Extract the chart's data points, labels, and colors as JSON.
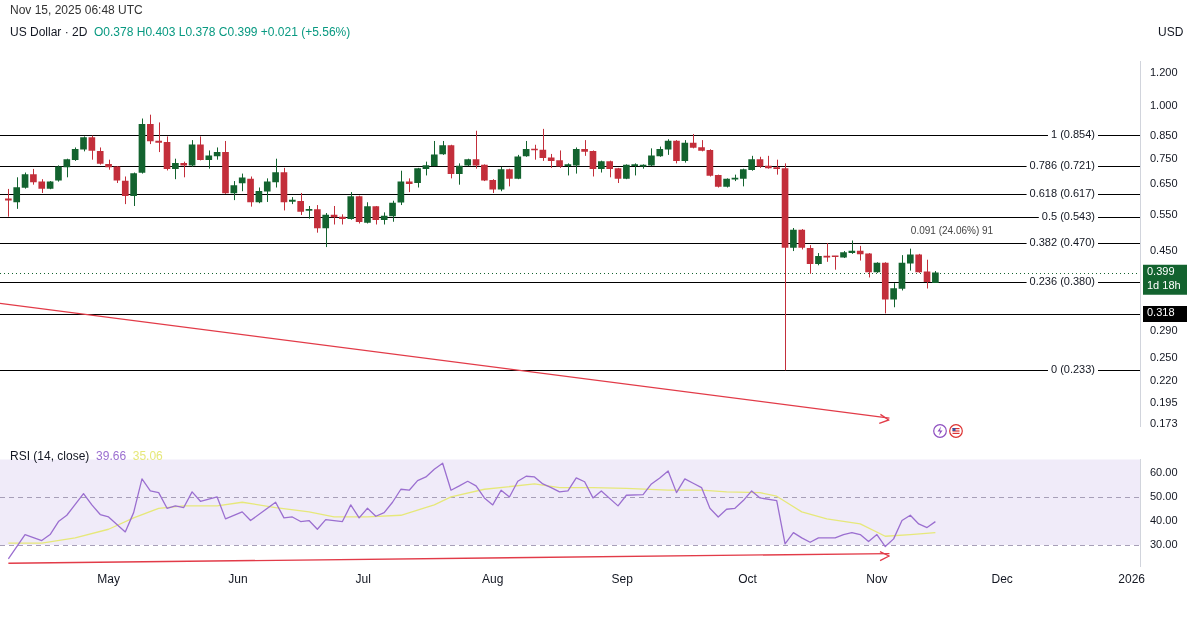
{
  "chart_data": [
    {
      "type": "candlestick",
      "title": "US Dollar · 2D",
      "subtitle": "O0.378 H0.403 L0.378 C0.399 +0.021 (+5.56%)",
      "ylabel": "USD",
      "log": true,
      "tick_labels": "y",
      "annotations": [
        "Nov 15, 2025 06:48 UTC",
        "0.091 (24.06%) 91"
      ],
      "xlim": [
        "2025-04-05",
        "2026-01-03"
      ],
      "ylim": [
        0.171,
        1.28
      ],
      "yticks": [
        0.173,
        0.195,
        {
          "value": 0.22,
          "label": "0.220"
        },
        {
          "value": 0.25,
          "label": "0.250"
        },
        {
          "value": 0.29,
          "label": "0.290"
        },
        {
          "value": 0.45,
          "label": "0.450"
        },
        {
          "value": 0.55,
          "label": "0.550"
        },
        {
          "value": 0.65,
          "label": "0.650"
        },
        {
          "value": 0.75,
          "label": "0.750"
        },
        {
          "value": 0.85,
          "label": "0.850"
        },
        {
          "value": 1,
          "label": "1.000"
        },
        {
          "value": 1.2,
          "label": "1.200"
        }
      ],
      "x": [
        "2025-04-07",
        "2025-04-09",
        "2025-04-11",
        "2025-04-13",
        "2025-04-15",
        "2025-04-17",
        "2025-04-19",
        "2025-04-21",
        "2025-04-23",
        "2025-04-25",
        "2025-04-27",
        "2025-04-29",
        "2025-05-01",
        "2025-05-03",
        "2025-05-05",
        "2025-05-07",
        "2025-05-09",
        "2025-05-11",
        "2025-05-13",
        "2025-05-15",
        "2025-05-17",
        "2025-05-19",
        "2025-05-21",
        "2025-05-23",
        "2025-05-25",
        "2025-05-27",
        "2025-05-29",
        "2025-05-31",
        "2025-06-02",
        "2025-06-04",
        "2025-06-06",
        "2025-06-08",
        "2025-06-10",
        "2025-06-12",
        "2025-06-14",
        "2025-06-16",
        "2025-06-18",
        "2025-06-20",
        "2025-06-22",
        "2025-06-24",
        "2025-06-26",
        "2025-06-28",
        "2025-06-30",
        "2025-07-02",
        "2025-07-04",
        "2025-07-06",
        "2025-07-08",
        "2025-07-10",
        "2025-07-12",
        "2025-07-14",
        "2025-07-16",
        "2025-07-18",
        "2025-07-20",
        "2025-07-22",
        "2025-07-24",
        "2025-07-26",
        "2025-07-28",
        "2025-07-30",
        "2025-08-01",
        "2025-08-03",
        "2025-08-05",
        "2025-08-07",
        "2025-08-09",
        "2025-08-11",
        "2025-08-13",
        "2025-08-15",
        "2025-08-17",
        "2025-08-19",
        "2025-08-21",
        "2025-08-23",
        "2025-08-25",
        "2025-08-27",
        "2025-08-29",
        "2025-08-31",
        "2025-09-02",
        "2025-09-04",
        "2025-09-06",
        "2025-09-08",
        "2025-09-10",
        "2025-09-12",
        "2025-09-14",
        "2025-09-16",
        "2025-09-18",
        "2025-09-20",
        "2025-09-22",
        "2025-09-24",
        "2025-09-26",
        "2025-09-28",
        "2025-09-30",
        "2025-10-02",
        "2025-10-04",
        "2025-10-06",
        "2025-10-08",
        "2025-10-10",
        "2025-10-12",
        "2025-10-14",
        "2025-10-16",
        "2025-10-18",
        "2025-10-20",
        "2025-10-22",
        "2025-10-24",
        "2025-10-26",
        "2025-10-28",
        "2025-10-30",
        "2025-11-01",
        "2025-11-03",
        "2025-11-05",
        "2025-11-07",
        "2025-11-09",
        "2025-11-11",
        "2025-11-13",
        "2025-11-15"
      ],
      "ohlc": [
        [
          0.6,
          0.634,
          0.544,
          0.596
        ],
        [
          0.59,
          0.676,
          0.568,
          0.639
        ],
        [
          0.639,
          0.694,
          0.635,
          0.686
        ],
        [
          0.686,
          0.708,
          0.649,
          0.659
        ],
        [
          0.659,
          0.669,
          0.62,
          0.636
        ],
        [
          0.636,
          0.662,
          0.633,
          0.659
        ],
        [
          0.665,
          0.722,
          0.66,
          0.716
        ],
        [
          0.716,
          0.749,
          0.676,
          0.745
        ],
        [
          0.745,
          0.797,
          0.74,
          0.789
        ],
        [
          0.789,
          0.847,
          0.78,
          0.842
        ],
        [
          0.842,
          0.851,
          0.745,
          0.784
        ],
        [
          0.78,
          0.797,
          0.725,
          0.73
        ],
        [
          0.726,
          0.745,
          0.705,
          0.716
        ],
        [
          0.716,
          0.719,
          0.655,
          0.665
        ],
        [
          0.662,
          0.679,
          0.583,
          0.611
        ],
        [
          0.611,
          0.694,
          0.577,
          0.69
        ],
        [
          0.694,
          0.935,
          0.69,
          0.906
        ],
        [
          0.906,
          0.955,
          0.812,
          0.826
        ],
        [
          0.826,
          0.915,
          0.777,
          0.82
        ],
        [
          0.82,
          0.847,
          0.702,
          0.709
        ],
        [
          0.709,
          0.749,
          0.669,
          0.73
        ],
        [
          0.73,
          0.737,
          0.676,
          0.723
        ],
        [
          0.723,
          0.83,
          0.716,
          0.809
        ],
        [
          0.809,
          0.847,
          0.742,
          0.745
        ],
        [
          0.745,
          0.784,
          0.709,
          0.761
        ],
        [
          0.761,
          0.797,
          0.745,
          0.776
        ],
        [
          0.776,
          0.826,
          0.617,
          0.62
        ],
        [
          0.62,
          0.662,
          0.596,
          0.646
        ],
        [
          0.655,
          0.69,
          0.626,
          0.674
        ],
        [
          0.669,
          0.679,
          0.575,
          0.59
        ],
        [
          0.59,
          0.639,
          0.586,
          0.626
        ],
        [
          0.626,
          0.672,
          0.59,
          0.659
        ],
        [
          0.659,
          0.749,
          0.639,
          0.694
        ],
        [
          0.694,
          0.712,
          0.563,
          0.59
        ],
        [
          0.592,
          0.606,
          0.583,
          0.596
        ],
        [
          0.592,
          0.62,
          0.549,
          0.56
        ],
        [
          0.563,
          0.577,
          0.538,
          0.566
        ],
        [
          0.566,
          0.58,
          0.498,
          0.511
        ],
        [
          0.511,
          0.555,
          0.46,
          0.549
        ],
        [
          0.549,
          0.577,
          0.521,
          0.543
        ],
        [
          0.543,
          0.551,
          0.521,
          0.538
        ],
        [
          0.538,
          0.623,
          0.535,
          0.608
        ],
        [
          0.608,
          0.611,
          0.524,
          0.529
        ],
        [
          0.527,
          0.589,
          0.524,
          0.575
        ],
        [
          0.575,
          0.577,
          0.521,
          0.535
        ],
        [
          0.535,
          0.557,
          0.521,
          0.546
        ],
        [
          0.546,
          0.594,
          0.529,
          0.586
        ],
        [
          0.589,
          0.701,
          0.58,
          0.659
        ],
        [
          0.659,
          0.672,
          0.623,
          0.653
        ],
        [
          0.656,
          0.712,
          0.639,
          0.709
        ],
        [
          0.709,
          0.737,
          0.683,
          0.721
        ],
        [
          0.721,
          0.826,
          0.719,
          0.765
        ],
        [
          0.769,
          0.826,
          0.765,
          0.805
        ],
        [
          0.805,
          0.809,
          0.672,
          0.69
        ],
        [
          0.69,
          0.73,
          0.649,
          0.719
        ],
        [
          0.723,
          0.749,
          0.719,
          0.745
        ],
        [
          0.745,
          0.874,
          0.709,
          0.723
        ],
        [
          0.723,
          0.726,
          0.662,
          0.665
        ],
        [
          0.665,
          0.669,
          0.62,
          0.633
        ],
        [
          0.633,
          0.716,
          0.626,
          0.705
        ],
        [
          0.705,
          0.709,
          0.643,
          0.672
        ],
        [
          0.672,
          0.765,
          0.669,
          0.757
        ],
        [
          0.761,
          0.826,
          0.757,
          0.789
        ],
        [
          0.789,
          0.809,
          0.745,
          0.786
        ],
        [
          0.786,
          0.883,
          0.74,
          0.753
        ],
        [
          0.753,
          0.769,
          0.712,
          0.741
        ],
        [
          0.741,
          0.784,
          0.712,
          0.719
        ],
        [
          0.721,
          0.73,
          0.683,
          0.723
        ],
        [
          0.723,
          0.797,
          0.69,
          0.789
        ],
        [
          0.789,
          0.83,
          0.761,
          0.78
        ],
        [
          0.78,
          0.784,
          0.679,
          0.709
        ],
        [
          0.709,
          0.741,
          0.694,
          0.737
        ],
        [
          0.737,
          0.741,
          0.676,
          0.709
        ],
        [
          0.709,
          0.712,
          0.655,
          0.672
        ],
        [
          0.672,
          0.726,
          0.669,
          0.723
        ],
        [
          0.721,
          0.73,
          0.683,
          0.723
        ],
        [
          0.719,
          0.726,
          0.709,
          0.723
        ],
        [
          0.723,
          0.793,
          0.719,
          0.761
        ],
        [
          0.761,
          0.801,
          0.757,
          0.789
        ],
        [
          0.789,
          0.834,
          0.765,
          0.826
        ],
        [
          0.826,
          0.83,
          0.73,
          0.741
        ],
        [
          0.741,
          0.83,
          0.733,
          0.817
        ],
        [
          0.817,
          0.858,
          0.793,
          0.797
        ],
        [
          0.797,
          0.83,
          0.78,
          0.784
        ],
        [
          0.784,
          0.789,
          0.679,
          0.683
        ],
        [
          0.683,
          0.686,
          0.639,
          0.643
        ],
        [
          0.643,
          0.672,
          0.639,
          0.669
        ],
        [
          0.669,
          0.686,
          0.662,
          0.672
        ],
        [
          0.672,
          0.709,
          0.643,
          0.705
        ],
        [
          0.705,
          0.761,
          0.701,
          0.745
        ],
        [
          0.745,
          0.757,
          0.712,
          0.719
        ],
        [
          0.719,
          0.761,
          0.709,
          0.712
        ],
        [
          0.712,
          0.745,
          0.686,
          0.709
        ],
        [
          0.709,
          0.73,
          0.233,
          0.459
        ],
        [
          0.459,
          0.511,
          0.45,
          0.505
        ],
        [
          0.505,
          0.508,
          0.454,
          0.459
        ],
        [
          0.457,
          0.465,
          0.397,
          0.42
        ],
        [
          0.42,
          0.445,
          0.416,
          0.437
        ],
        [
          0.437,
          0.47,
          0.424,
          0.435
        ],
        [
          0.437,
          0.438,
          0.406,
          0.436
        ],
        [
          0.435,
          0.45,
          0.433,
          0.446
        ],
        [
          0.446,
          0.477,
          0.443,
          0.45
        ],
        [
          0.45,
          0.463,
          0.427,
          0.443
        ],
        [
          0.443,
          0.445,
          0.389,
          0.401
        ],
        [
          0.401,
          0.423,
          0.399,
          0.421
        ],
        [
          0.421,
          0.423,
          0.319,
          0.345
        ],
        [
          0.345,
          0.377,
          0.33,
          0.366
        ],
        [
          0.366,
          0.44,
          0.362,
          0.421
        ],
        [
          0.421,
          0.456,
          0.404,
          0.441
        ],
        [
          0.441,
          0.443,
          0.399,
          0.401
        ],
        [
          0.401,
          0.429,
          0.366,
          0.38
        ],
        [
          0.378,
          0.403,
          0.378,
          0.399
        ]
      ],
      "series": [
        {
          "type": "line",
          "color": "#e23b48",
          "x": [
            "2025-04-05",
            "2025-11-04"
          ],
          "values": [
            0.337,
            0.179
          ]
        }
      ],
      "ref_lines": [
        {
          "axis": "y",
          "value": 0.854,
          "label": "1 (0.854)"
        },
        {
          "axis": "y",
          "value": 0.721,
          "label": "0.786 (0.721)"
        },
        {
          "axis": "y",
          "value": 0.617,
          "label": "0.618 (0.617)"
        },
        {
          "axis": "y",
          "value": 0.543,
          "label": "0.5 (0.543)"
        },
        {
          "axis": "y",
          "value": 0.47,
          "label": "0.382 (0.470)"
        },
        {
          "axis": "y",
          "value": 0.38,
          "label": "0.236 (0.380)"
        },
        {
          "axis": "y",
          "value": 0.318,
          "label": "0.318",
          "color": "#000000"
        },
        {
          "axis": "y",
          "value": 0.233,
          "label": "0 (0.233)"
        },
        {
          "axis": "y",
          "value": 0.399,
          "label": "0.399\n1d 18h",
          "color": "#13632f",
          "line_style": "dotted"
        }
      ]
    },
    {
      "type": "line",
      "title": "RSI (14, close)",
      "annotations": [
        "39.66",
        "35.06"
      ],
      "xlim": [
        "2025-04-05",
        "2026-01-03"
      ],
      "ylim": [
        21,
        65.4
      ],
      "xticks": [
        {
          "value": "2025-05-01",
          "label": "May"
        },
        {
          "value": "2025-06-01",
          "label": "Jun"
        },
        {
          "value": "2025-07-01",
          "label": "Jul"
        },
        {
          "value": "2025-08-01",
          "label": "Aug"
        },
        {
          "value": "2025-09-01",
          "label": "Sep"
        },
        {
          "value": "2025-10-01",
          "label": "Oct"
        },
        {
          "value": "2025-11-01",
          "label": "Nov"
        },
        {
          "value": "2025-12-01",
          "label": "Dec"
        },
        {
          "value": "2026-01-01",
          "label": "2026"
        }
      ],
      "yticks": [
        {
          "value": 30,
          "label": "30.00"
        },
        {
          "value": 40,
          "label": "40.00"
        },
        {
          "value": 50,
          "label": "50.00"
        },
        {
          "value": 60,
          "label": "60.00"
        }
      ],
      "bands": [
        {
          "axis": "y",
          "from": 30,
          "to": 65.4,
          "color": "#f0ebf9"
        }
      ],
      "ref_lines": [
        {
          "axis": "y",
          "value": 30,
          "color": "#a79fb8",
          "line_style": "dashed"
        },
        {
          "axis": "y",
          "value": 50,
          "color": "#a79fb8",
          "line_style": "dashed"
        }
      ],
      "series": [
        {
          "color": "#9b6fd0",
          "x": [
            "2025-04-07",
            "2025-04-11",
            "2025-04-15",
            "2025-04-17",
            "2025-04-19",
            "2025-04-21",
            "2025-04-25",
            "2025-04-27",
            "2025-04-29",
            "2025-05-01",
            "2025-05-05",
            "2025-05-07",
            "2025-05-09",
            "2025-05-11",
            "2025-05-13",
            "2025-05-15",
            "2025-05-17",
            "2025-05-19",
            "2025-05-21",
            "2025-05-23",
            "2025-05-27",
            "2025-05-29",
            "2025-06-02",
            "2025-06-04",
            "2025-06-10",
            "2025-06-12",
            "2025-06-14",
            "2025-06-16",
            "2025-06-18",
            "2025-06-20",
            "2025-06-22",
            "2025-06-26",
            "2025-06-28",
            "2025-06-30",
            "2025-07-02",
            "2025-07-04",
            "2025-07-06",
            "2025-07-08",
            "2025-07-10",
            "2025-07-12",
            "2025-07-14",
            "2025-07-16",
            "2025-07-18",
            "2025-07-20",
            "2025-07-22",
            "2025-07-24",
            "2025-07-26",
            "2025-07-28",
            "2025-07-30",
            "2025-08-01",
            "2025-08-03",
            "2025-08-05",
            "2025-08-07",
            "2025-08-09",
            "2025-08-11",
            "2025-08-13",
            "2025-08-15",
            "2025-08-17",
            "2025-08-19",
            "2025-08-21",
            "2025-08-23",
            "2025-08-25",
            "2025-08-27",
            "2025-08-31",
            "2025-09-02",
            "2025-09-06",
            "2025-09-08",
            "2025-09-10",
            "2025-09-12",
            "2025-09-14",
            "2025-09-16",
            "2025-09-18",
            "2025-09-20",
            "2025-09-22",
            "2025-09-24",
            "2025-09-26",
            "2025-09-28",
            "2025-09-30",
            "2025-10-02",
            "2025-10-04",
            "2025-10-08",
            "2025-10-10",
            "2025-10-12",
            "2025-10-14",
            "2025-10-16",
            "2025-10-18",
            "2025-10-22",
            "2025-10-24",
            "2025-10-26",
            "2025-10-28",
            "2025-10-30",
            "2025-11-01",
            "2025-11-03",
            "2025-11-05",
            "2025-11-07",
            "2025-11-09",
            "2025-11-11",
            "2025-11-13",
            "2025-11-15"
          ],
          "values": [
            24.2,
            34.3,
            31.8,
            34.3,
            39.7,
            42.3,
            51.3,
            46.6,
            42.6,
            41.6,
            35.4,
            43.4,
            57.4,
            52.4,
            51.7,
            45.2,
            46.2,
            45.5,
            52.0,
            48.1,
            49.9,
            40.8,
            43.7,
            40.1,
            47.7,
            41.2,
            41.6,
            39.7,
            40.1,
            36.5,
            40.5,
            39.7,
            46.6,
            41.2,
            45.2,
            41.9,
            43.4,
            47.7,
            53.1,
            52.7,
            56.7,
            58.2,
            61.4,
            63.9,
            52.7,
            54.5,
            56.4,
            54.5,
            49.5,
            46.6,
            52.7,
            49.9,
            56.4,
            58.5,
            58.2,
            55.3,
            53.8,
            52.0,
            52.4,
            57.8,
            56.2,
            49.5,
            52.4,
            46.2,
            50.6,
            50.9,
            55.3,
            57.8,
            60.7,
            51.7,
            57.4,
            55.6,
            53.8,
            45.2,
            41.6,
            44.8,
            45.2,
            48.4,
            52.4,
            49.5,
            48.4,
            30.4,
            35.1,
            32.9,
            31.1,
            32.9,
            32.9,
            34.3,
            35.1,
            34.3,
            31.4,
            34.3,
            29.3,
            32.5,
            40.1,
            42.3,
            38.7,
            37.2,
            39.66
          ]
        },
        {
          "color": "#e6e87a",
          "x": [
            "2025-04-07",
            "2025-04-15",
            "2025-04-23",
            "2025-05-01",
            "2025-05-07",
            "2025-05-13",
            "2025-05-19",
            "2025-05-27",
            "2025-06-02",
            "2025-06-10",
            "2025-06-18",
            "2025-06-24",
            "2025-07-02",
            "2025-07-10",
            "2025-07-18",
            "2025-07-22",
            "2025-07-30",
            "2025-08-11",
            "2025-08-17",
            "2025-08-25",
            "2025-09-02",
            "2025-09-12",
            "2025-09-20",
            "2025-09-26",
            "2025-10-04",
            "2025-10-08",
            "2025-10-14",
            "2025-10-20",
            "2025-10-28",
            "2025-11-03",
            "2025-11-09",
            "2025-11-15"
          ],
          "values": [
            30.7,
            30.7,
            32.9,
            36.5,
            41.2,
            45.2,
            46.2,
            46.2,
            47.7,
            45.5,
            43.7,
            41.6,
            41.6,
            42.3,
            46.6,
            49.9,
            53.1,
            55.3,
            53.8,
            53.8,
            53.5,
            52.7,
            52.7,
            52.0,
            51.7,
            50.2,
            43.7,
            40.8,
            38.7,
            33.6,
            34.3,
            35.06
          ]
        },
        {
          "type": "line",
          "color": "#e23b48",
          "x": [
            "2025-04-07",
            "2025-11-04"
          ],
          "values": [
            22.4,
            26.4
          ]
        }
      ]
    }
  ]
}
